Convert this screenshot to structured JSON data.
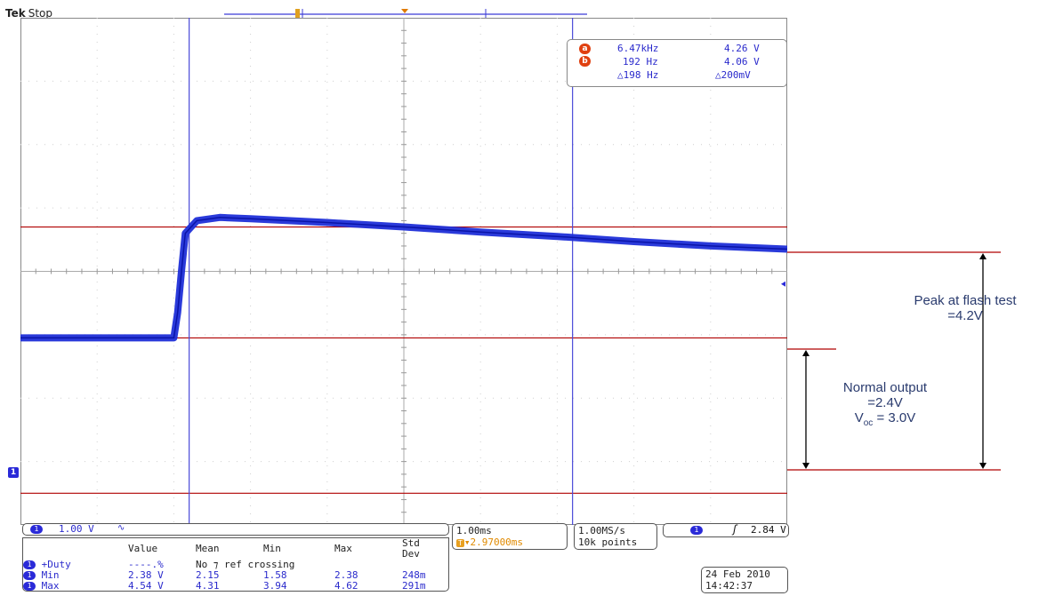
{
  "header": {
    "brand": "Tek",
    "status": "Stop"
  },
  "markers": {
    "trigger": "T",
    "cursor_a": "a",
    "cursor_b": "b",
    "channel": "1"
  },
  "cursor_readout": {
    "a_freq": "6.47kHz",
    "a_volt": "4.26 V",
    "b_freq": "192 Hz",
    "b_volt": "4.06 V",
    "delta_freq": "△198 Hz",
    "delta_volt": "△200mV"
  },
  "channel_panel": {
    "scale": "1.00 V",
    "coupling": "∿"
  },
  "timebase": {
    "per_div": "1.00ms",
    "position": "▾2.97000ms"
  },
  "acquisition": {
    "rate": "1.00MS/s",
    "points": "10k points"
  },
  "trigger": {
    "slope": "ʃ",
    "level": "2.84 V"
  },
  "measurements": {
    "headers": [
      "Value",
      "Mean",
      "Min",
      "Max",
      "Std Dev"
    ],
    "rows": [
      {
        "label": "+Duty",
        "value": "----.%",
        "mean": "No ⁊ ref crossing",
        "min": "",
        "max": "",
        "std": ""
      },
      {
        "label": "Min",
        "value": "2.38 V",
        "mean": "2.15",
        "min": "1.58",
        "max": "2.38",
        "std": "248m"
      },
      {
        "label": "Max",
        "value": "4.54 V",
        "mean": "4.31",
        "min": "3.94",
        "max": "4.62",
        "std": "291m"
      }
    ]
  },
  "datetime": {
    "date": "24 Feb  2010",
    "time": "14:42:37"
  },
  "annotations": {
    "peak_line1": "Peak at flash test",
    "peak_line2": "=4.2V",
    "normal_line1": "Normal output",
    "normal_line2": "=2.4V",
    "voc_label": "V",
    "voc_sub": "oc",
    "voc_value": " = 3.0V"
  },
  "chart_data": {
    "type": "line",
    "xlim": [
      0,
      10
    ],
    "ylim": [
      -0.5,
      7.5
    ],
    "series": [
      {
        "x": [
          0,
          1,
          2,
          2.05,
          2.1,
          2.15,
          2.3,
          2.6,
          3,
          4,
          5,
          6,
          7,
          8,
          9,
          10
        ],
        "y": [
          2.45,
          2.45,
          2.45,
          2.85,
          3.5,
          4.1,
          4.3,
          4.35,
          4.33,
          4.27,
          4.2,
          4.12,
          4.05,
          3.97,
          3.9,
          3.85
        ]
      }
    ],
    "reference_lines": [
      4.2,
      2.45,
      0
    ],
    "cursor_a_x": 2.2,
    "cursor_b_x": 7.2,
    "grid": true
  }
}
